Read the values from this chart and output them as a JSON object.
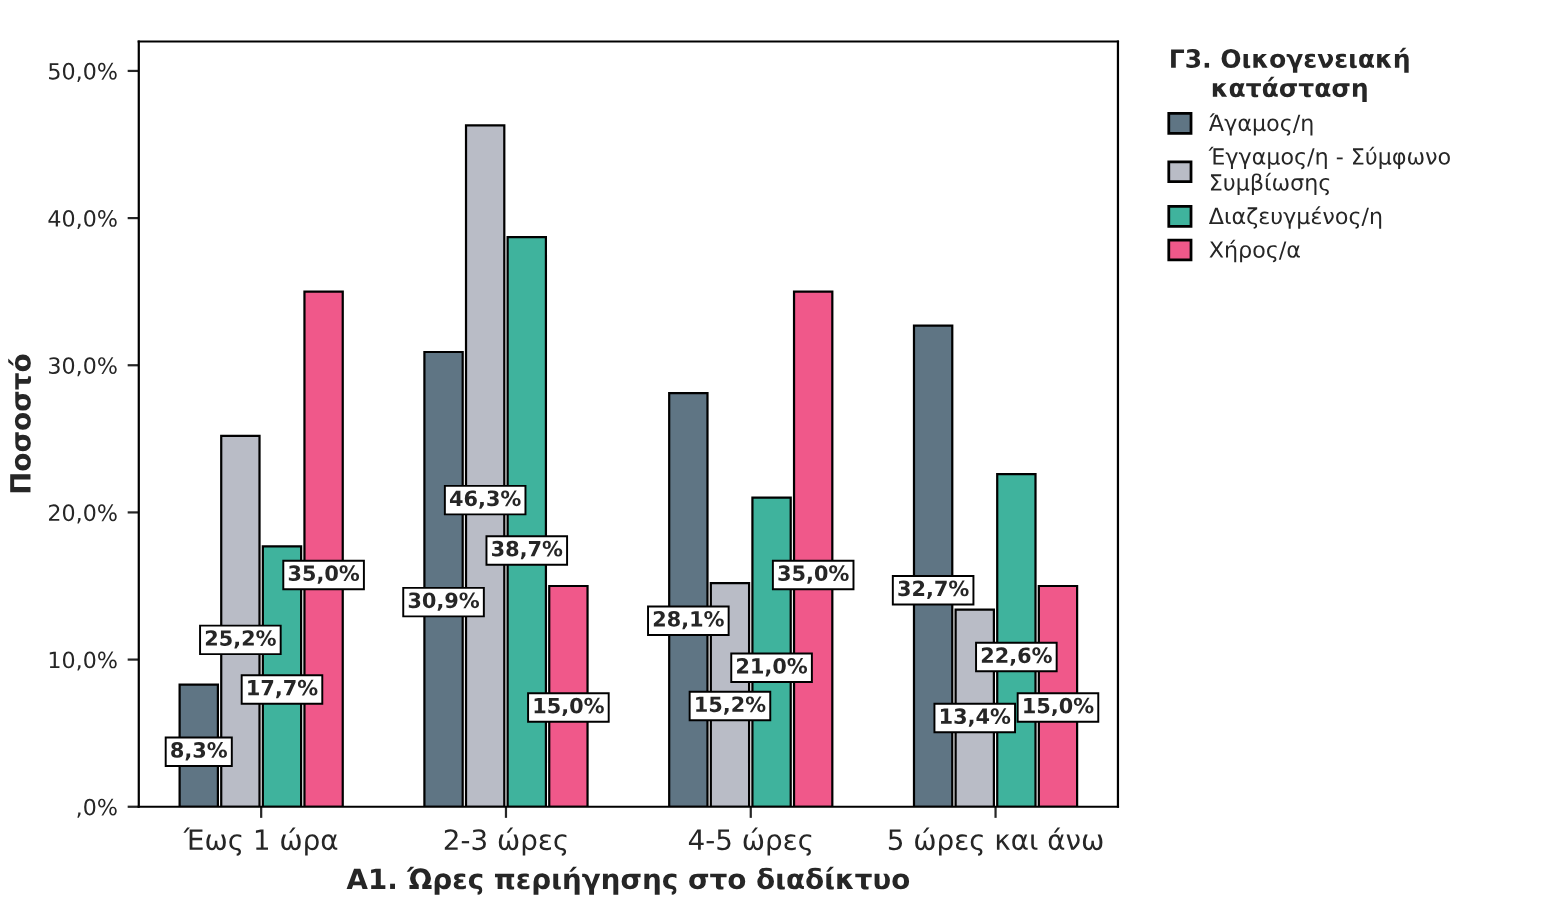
{
  "chart_data": {
    "type": "bar",
    "xlabel": "Α1. Ώρες περιήγησης στο διαδίκτυο",
    "ylabel": "Ποσοστό",
    "legend_title": "Γ3. Οικογενειακή κατάσταση",
    "categories": [
      "Έως 1 ώρα",
      "2-3 ώρες",
      "4-5 ώρες",
      "5 ώρες και άνω"
    ],
    "series": [
      {
        "name": "Άγαμος/η",
        "color": "#5f7584",
        "values": [
          8.3,
          30.9,
          28.1,
          32.7
        ],
        "value_labels": [
          "8,3%",
          "30,9%",
          "28,1%",
          "32,7%"
        ]
      },
      {
        "name": "Έγγαμος/η - Σύμφωνο Συμβίωσης",
        "color": "#b9bcc6",
        "values": [
          25.2,
          46.3,
          15.2,
          13.4
        ],
        "value_labels": [
          "25,2%",
          "46,3%",
          "15,2%",
          "13,4%"
        ]
      },
      {
        "name": "Διαζευγμένος/η",
        "color": "#3fb39d",
        "values": [
          17.7,
          38.7,
          21.0,
          22.6
        ],
        "value_labels": [
          "17,7%",
          "38,7%",
          "21,0%",
          "22,6%"
        ]
      },
      {
        "name": "Χήρος/α",
        "color": "#f0588a",
        "values": [
          35.0,
          15.0,
          35.0,
          15.0
        ],
        "value_labels": [
          "35,0%",
          "15,0%",
          "35,0%",
          "15,0%"
        ]
      }
    ],
    "ylim": [
      0,
      52
    ],
    "yticks": [
      {
        "value": 0,
        "label": ",0%"
      },
      {
        "value": 10,
        "label": "10,0%"
      },
      {
        "value": 20,
        "label": "20,0%"
      },
      {
        "value": 30,
        "label": "30,0%"
      },
      {
        "value": 40,
        "label": "40,0%"
      },
      {
        "value": 50,
        "label": "50,0%"
      }
    ],
    "grid": false,
    "legend": "top right"
  }
}
